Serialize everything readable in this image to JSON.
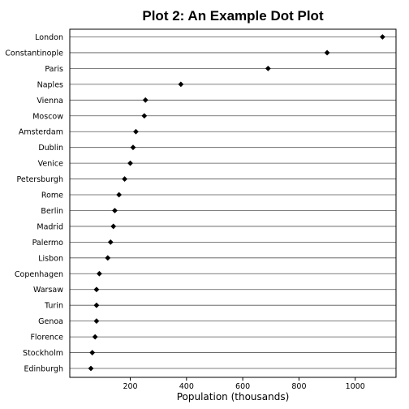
{
  "chart_data": {
    "type": "scatter",
    "title": "Plot 2: An Example Dot Plot",
    "xlabel": "Population (thousands)",
    "ylabel": "",
    "categories": [
      "London",
      "Constantinople",
      "Paris",
      "Naples",
      "Vienna",
      "Moscow",
      "Amsterdam",
      "Dublin",
      "Venice",
      "Petersburgh",
      "Rome",
      "Berlin",
      "Madrid",
      "Palermo",
      "Lisbon",
      "Copenhagen",
      "Warsaw",
      "Turin",
      "Genoa",
      "Florence",
      "Stockholm",
      "Edinburgh"
    ],
    "values": [
      1097,
      900,
      690,
      380,
      254,
      250,
      220,
      210,
      200,
      180,
      160,
      145,
      140,
      130,
      120,
      90,
      80,
      80,
      80,
      75,
      65,
      60
    ],
    "xlim": [
      -15,
      1145
    ],
    "xticks": [
      200,
      400,
      600,
      800,
      1000
    ],
    "grid": true,
    "legend": "none",
    "marker": "diamond",
    "colors": {
      "marker": "#000000",
      "grid": "#555555",
      "frame": "#000000"
    }
  }
}
